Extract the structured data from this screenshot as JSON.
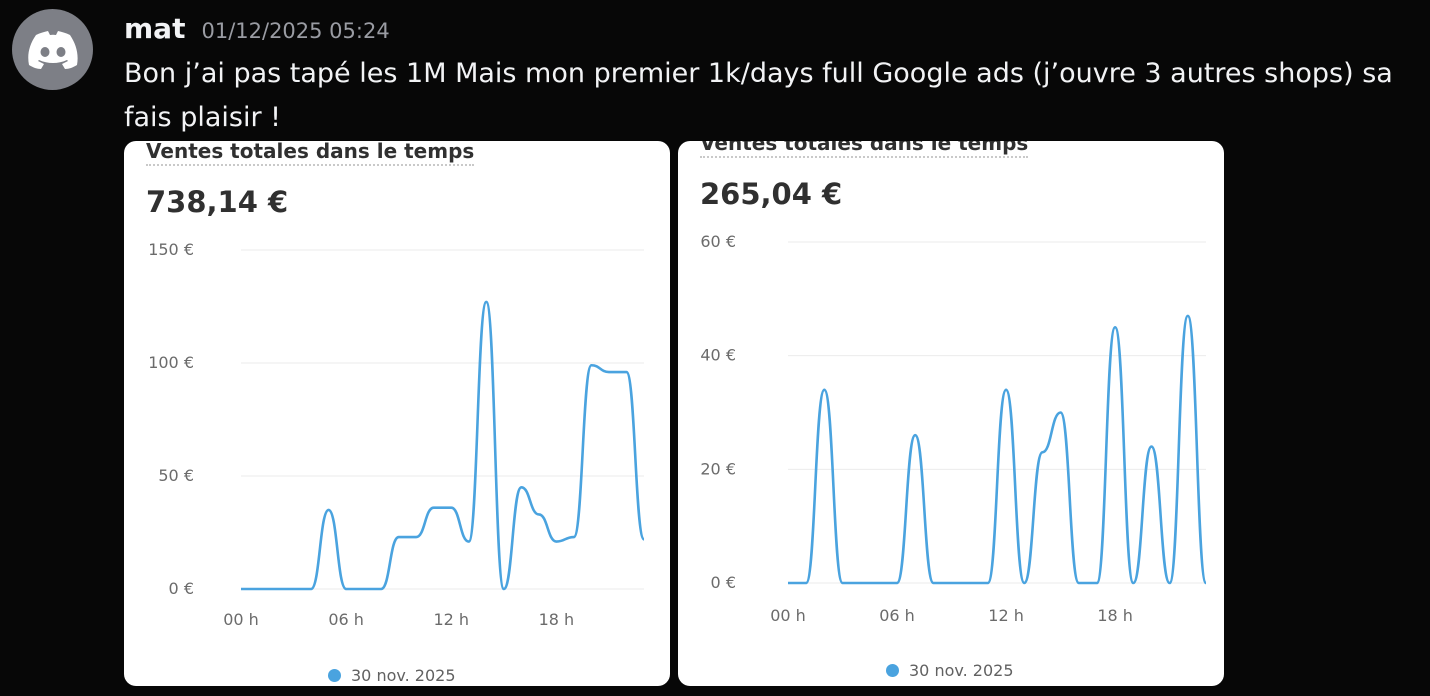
{
  "message": {
    "username": "mat",
    "timestamp": "01/12/2025 05:24",
    "text": "Bon j’ai pas tapé les 1M Mais mon premier 1k/days full Google ads (j’ouvre 3 autres shops) sa fais plaisir !"
  },
  "avatar": {
    "icon": "discord-logo-icon",
    "color": "#7d7f86"
  },
  "colors": {
    "line": "#4aa3df",
    "grid": "#ebebeb",
    "axis_text": "#6b6b6b"
  },
  "charts": [
    {
      "title": "Ventes totales dans le temps",
      "total": "738,14 €",
      "legend": "30 nov. 2025"
    },
    {
      "title": "Ventes totales dans le temps",
      "total": "265,04 €",
      "legend": "30 nov. 2025"
    }
  ],
  "chart_data": [
    {
      "type": "line",
      "title": "Ventes totales dans le temps",
      "x_ticks": [
        "00 h",
        "06 h",
        "12 h",
        "18 h"
      ],
      "y_ticks": [
        "0 €",
        "50 €",
        "100 €",
        "150 €"
      ],
      "ylim": [
        0,
        150
      ],
      "x": [
        0,
        1,
        2,
        3,
        4,
        5,
        6,
        7,
        8,
        9,
        10,
        11,
        12,
        13,
        14,
        15,
        16,
        17,
        18,
        19,
        20,
        21,
        22,
        23
      ],
      "series": [
        {
          "name": "30 nov. 2025",
          "values": [
            0,
            0,
            0,
            0,
            0,
            35,
            0,
            0,
            0,
            23,
            23,
            36,
            36,
            21,
            127,
            0,
            45,
            33,
            21,
            23,
            99,
            96,
            96,
            22
          ]
        }
      ],
      "grid": true,
      "legend_position": "bottom"
    },
    {
      "type": "line",
      "title": "Ventes totales dans le temps",
      "x_ticks": [
        "00 h",
        "06 h",
        "12 h",
        "18 h"
      ],
      "y_ticks": [
        "0 €",
        "20 €",
        "40 €",
        "60 €"
      ],
      "ylim": [
        0,
        60
      ],
      "x": [
        0,
        1,
        2,
        3,
        4,
        5,
        6,
        7,
        8,
        9,
        10,
        11,
        12,
        13,
        14,
        15,
        16,
        17,
        18,
        19,
        20,
        21,
        22,
        23
      ],
      "series": [
        {
          "name": "30 nov. 2025",
          "values": [
            0,
            0,
            34,
            0,
            0,
            0,
            0,
            26,
            0,
            0,
            0,
            0,
            34,
            0,
            23,
            30,
            0,
            0,
            45,
            0,
            24,
            0,
            47,
            0
          ]
        }
      ],
      "grid": true,
      "legend_position": "bottom"
    }
  ]
}
